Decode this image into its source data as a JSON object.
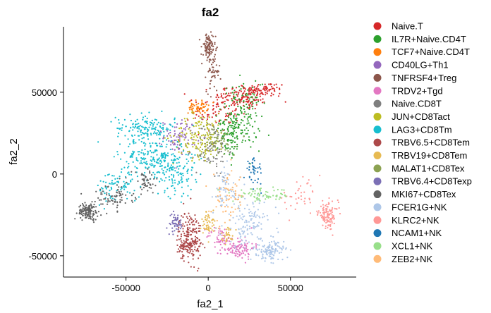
{
  "chart_data": {
    "type": "scatter",
    "title": "fa2",
    "xlabel": "fa2_1",
    "ylabel": "fa2_2",
    "xlim": [
      -88000,
      90000
    ],
    "ylim": [
      -63000,
      90000
    ],
    "x_ticks": [
      -50000,
      0,
      50000
    ],
    "x_tick_labels": [
      "-50000",
      "0",
      "50000"
    ],
    "y_ticks": [
      -50000,
      0,
      50000
    ],
    "y_tick_labels": [
      "-50000",
      "0",
      "50000"
    ],
    "grid": false,
    "legend_position": "right",
    "series": [
      {
        "name": "Naive.T",
        "color": "#d62728",
        "clusters": [
          {
            "cx": 22000,
            "cy": 47000,
            "sx": 9000,
            "sy": 4000,
            "n": 140
          },
          {
            "cx": 35000,
            "cy": 52000,
            "sx": 6000,
            "sy": 2000,
            "n": 60
          },
          {
            "cx": 5000,
            "cy": 38000,
            "sx": 7000,
            "sy": 6000,
            "n": 80
          }
        ]
      },
      {
        "name": "IL7R+Naive.CD4T",
        "color": "#2ca02c",
        "clusters": [
          {
            "cx": 20000,
            "cy": 35000,
            "sx": 6000,
            "sy": 10000,
            "n": 170
          },
          {
            "cx": 14000,
            "cy": 22000,
            "sx": 4000,
            "sy": 6000,
            "n": 70
          }
        ]
      },
      {
        "name": "TCF7+Naive.CD4T",
        "color": "#ff7f0e",
        "clusters": [
          {
            "cx": -6000,
            "cy": 41000,
            "sx": 3000,
            "sy": 2000,
            "n": 60
          }
        ]
      },
      {
        "name": "CD40LG+Th1",
        "color": "#9467bd",
        "clusters": [
          {
            "cx": -17000,
            "cy": 23000,
            "sx": 5000,
            "sy": 5000,
            "n": 80
          }
        ]
      },
      {
        "name": "TNFRSF4+Treg",
        "color": "#8c564b",
        "clusters": [
          {
            "cx": 0,
            "cy": 77000,
            "sx": 2200,
            "sy": 4500,
            "n": 90
          },
          {
            "cx": 3000,
            "cy": 62000,
            "sx": 2000,
            "sy": 6000,
            "n": 50
          }
        ]
      },
      {
        "name": "TRDV2+Tgd",
        "color": "#e377c2",
        "clusters": [
          {
            "cx": 18000,
            "cy": -45000,
            "sx": 5000,
            "sy": 3500,
            "n": 110
          },
          {
            "cx": 7000,
            "cy": -38000,
            "sx": 4000,
            "sy": 3000,
            "n": 40
          }
        ]
      },
      {
        "name": "Naive.CD8T",
        "color": "#7f7f7f",
        "clusters": [
          {
            "cx": 2000,
            "cy": 15000,
            "sx": 5000,
            "sy": 9000,
            "n": 90
          }
        ]
      },
      {
        "name": "JUN+CD8Tact",
        "color": "#bcbd22",
        "clusters": [
          {
            "cx": -5000,
            "cy": 23000,
            "sx": 8000,
            "sy": 7000,
            "n": 150
          }
        ]
      },
      {
        "name": "LAG3+CD8Tm",
        "color": "#17becf",
        "clusters": [
          {
            "cx": -38000,
            "cy": 28000,
            "sx": 9000,
            "sy": 4000,
            "n": 150
          },
          {
            "cx": -33000,
            "cy": 10000,
            "sx": 10000,
            "sy": 6000,
            "n": 200
          },
          {
            "cx": -55000,
            "cy": -8000,
            "sx": 7000,
            "sy": 5000,
            "n": 80
          },
          {
            "cx": -20000,
            "cy": 0,
            "sx": 6000,
            "sy": 7000,
            "n": 100
          }
        ]
      },
      {
        "name": "TRBV6.5+CD8Tem",
        "color": "#ad494a",
        "clusters": [
          {
            "cx": -11000,
            "cy": -38000,
            "sx": 3500,
            "sy": 8000,
            "n": 170
          },
          {
            "cx": -13000,
            "cy": -45000,
            "sx": 3000,
            "sy": 2500,
            "n": 60
          }
        ]
      },
      {
        "name": "TRBV19+CD8Tem",
        "color": "#e7ba52",
        "clusters": [
          {
            "cx": 0,
            "cy": -30000,
            "sx": 2000,
            "sy": 4000,
            "n": 50
          },
          {
            "cx": 12000,
            "cy": -37000,
            "sx": 2000,
            "sy": 2500,
            "n": 30
          }
        ]
      },
      {
        "name": "MALAT1+CD8Tex",
        "color": "#8ca252",
        "clusters": [
          {
            "cx": 5000,
            "cy": 20000,
            "sx": 6000,
            "sy": 5000,
            "n": 60
          }
        ]
      },
      {
        "name": "TRBV6.4+CD8Texp",
        "color": "#7b6fb5",
        "clusters": [
          {
            "cx": -20000,
            "cy": -30000,
            "sx": 2500,
            "sy": 3000,
            "n": 50
          }
        ]
      },
      {
        "name": "MKI67+CD8Tex",
        "color": "#636363",
        "clusters": [
          {
            "cx": -73000,
            "cy": -23000,
            "sx": 3000,
            "sy": 2500,
            "n": 140
          },
          {
            "cx": -58000,
            "cy": -14000,
            "sx": 6000,
            "sy": 4000,
            "n": 80
          },
          {
            "cx": -38000,
            "cy": -5000,
            "sx": 4000,
            "sy": 4000,
            "n": 50
          }
        ]
      },
      {
        "name": "FCER1G+NK",
        "color": "#aec7e8",
        "clusters": [
          {
            "cx": 38000,
            "cy": -47000,
            "sx": 4000,
            "sy": 3000,
            "n": 110
          },
          {
            "cx": 25000,
            "cy": -30000,
            "sx": 8000,
            "sy": 8000,
            "n": 130
          },
          {
            "cx": 10000,
            "cy": -10000,
            "sx": 5000,
            "sy": 7000,
            "n": 60
          }
        ]
      },
      {
        "name": "KLRC2+NK",
        "color": "#ff9896",
        "clusters": [
          {
            "cx": 73000,
            "cy": -25000,
            "sx": 3000,
            "sy": 4000,
            "n": 110
          },
          {
            "cx": 55000,
            "cy": -15000,
            "sx": 7000,
            "sy": 5000,
            "n": 40
          }
        ]
      },
      {
        "name": "NCAM1+NK",
        "color": "#1f77b4",
        "clusters": [
          {
            "cx": 28000,
            "cy": 2000,
            "sx": 2500,
            "sy": 4000,
            "n": 40
          }
        ]
      },
      {
        "name": "XCL1+NK",
        "color": "#98df8a",
        "clusters": [
          {
            "cx": 33000,
            "cy": -13000,
            "sx": 9000,
            "sy": 2000,
            "n": 70
          }
        ]
      },
      {
        "name": "ZEB2+NK",
        "color": "#ffbb78",
        "clusters": [
          {
            "cx": 12000,
            "cy": -15000,
            "sx": 5000,
            "sy": 8000,
            "n": 70
          }
        ]
      }
    ]
  }
}
